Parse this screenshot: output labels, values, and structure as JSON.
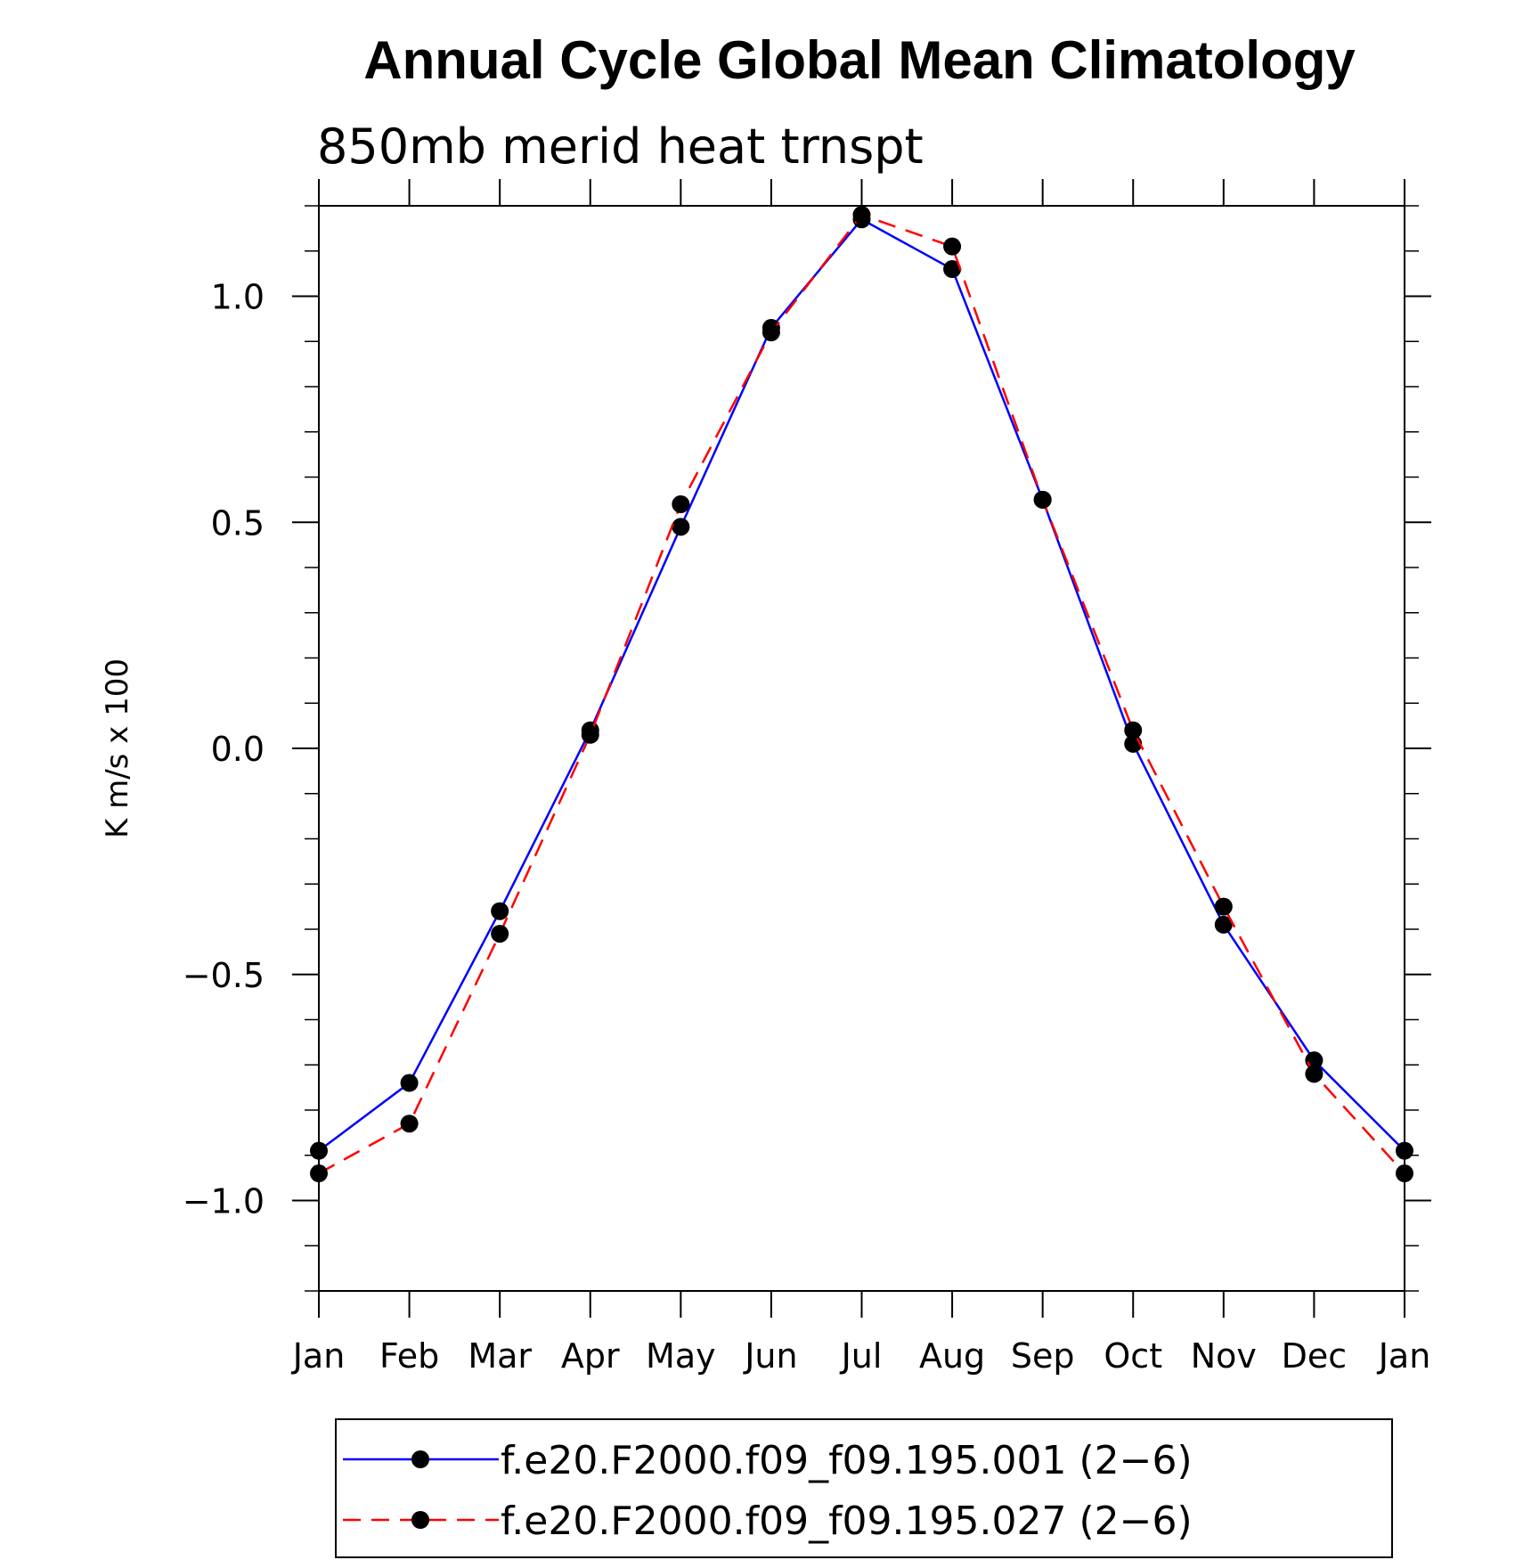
{
  "chart_data": {
    "type": "line",
    "title": "Annual Cycle Global Mean Climatology",
    "subtitle": "850mb merid heat trnspt",
    "ylabel": "K m/s x 100",
    "xlabel": "",
    "categories": [
      "Jan",
      "Feb",
      "Mar",
      "Apr",
      "May",
      "Jun",
      "Jul",
      "Aug",
      "Sep",
      "Oct",
      "Nov",
      "Dec",
      "Jan"
    ],
    "ylim": [
      -1.2,
      1.2
    ],
    "yticks": [
      -1.0,
      -0.5,
      0.0,
      0.5,
      1.0
    ],
    "ytick_labels": [
      "−1.0",
      "−0.5",
      "0.0",
      "0.5",
      "1.0"
    ],
    "series": [
      {
        "name": "f.e20.F2000.f09_f09.195.001 (2−6)",
        "color": "#0000ff",
        "dash": "solid",
        "marker": "filled-circle",
        "values": [
          -0.89,
          -0.74,
          -0.36,
          0.04,
          0.49,
          0.93,
          1.17,
          1.06,
          0.55,
          0.01,
          -0.39,
          -0.69,
          -0.89
        ]
      },
      {
        "name": "f.e20.F2000.f09_f09.195.027 (2−6)",
        "color": "#ff0000",
        "dash": "dashed",
        "marker": "filled-circle",
        "values": [
          -0.94,
          -0.83,
          -0.41,
          0.03,
          0.54,
          0.92,
          1.18,
          1.11,
          0.55,
          0.04,
          -0.35,
          -0.72,
          -0.94
        ]
      }
    ],
    "grid": false,
    "legend_position": "bottom"
  }
}
